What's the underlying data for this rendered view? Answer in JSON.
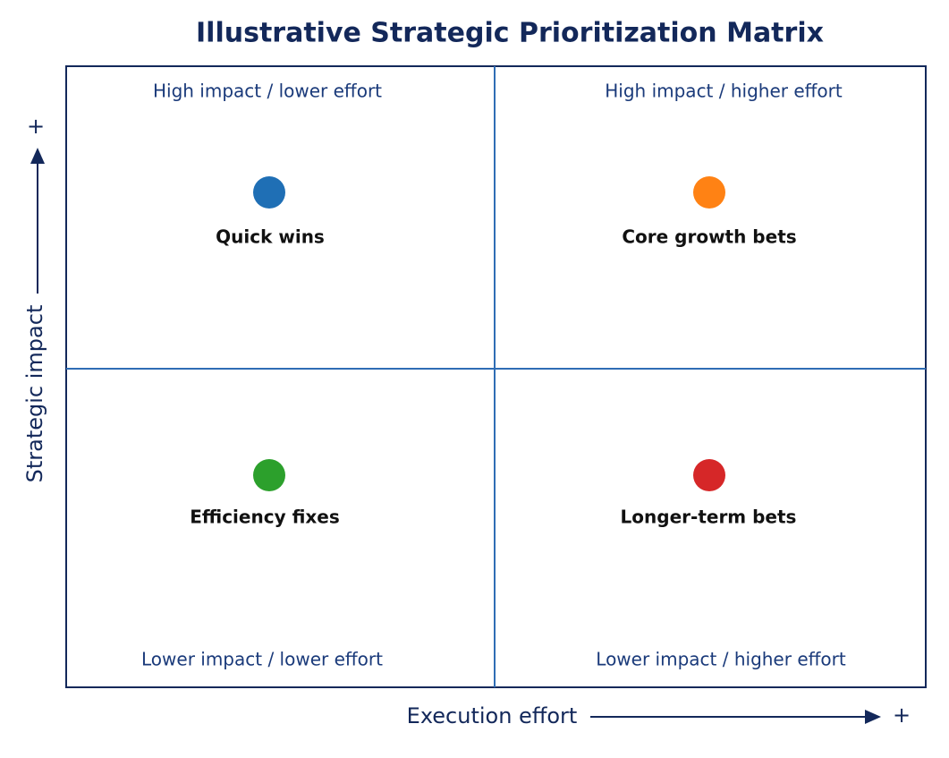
{
  "title": "Illustrative Strategic Prioritization Matrix",
  "axes": {
    "y": {
      "label": "Strategic impact",
      "end": "+"
    },
    "x": {
      "label": "Execution effort",
      "end": "+"
    }
  },
  "quadrants": [
    {
      "corner_label": "High impact / lower effort",
      "item": "Quick wins",
      "color": "#1f6fb5"
    },
    {
      "corner_label": "High impact / higher effort",
      "item": "Core growth bets",
      "color": "#ff8214"
    },
    {
      "corner_label": "Lower impact / lower effort",
      "item": "Efficiency fixes",
      "color": "#2ca02c"
    },
    {
      "corner_label": "Lower impact / higher effort",
      "item": "Longer-term bets",
      "color": "#d62728"
    }
  ]
}
